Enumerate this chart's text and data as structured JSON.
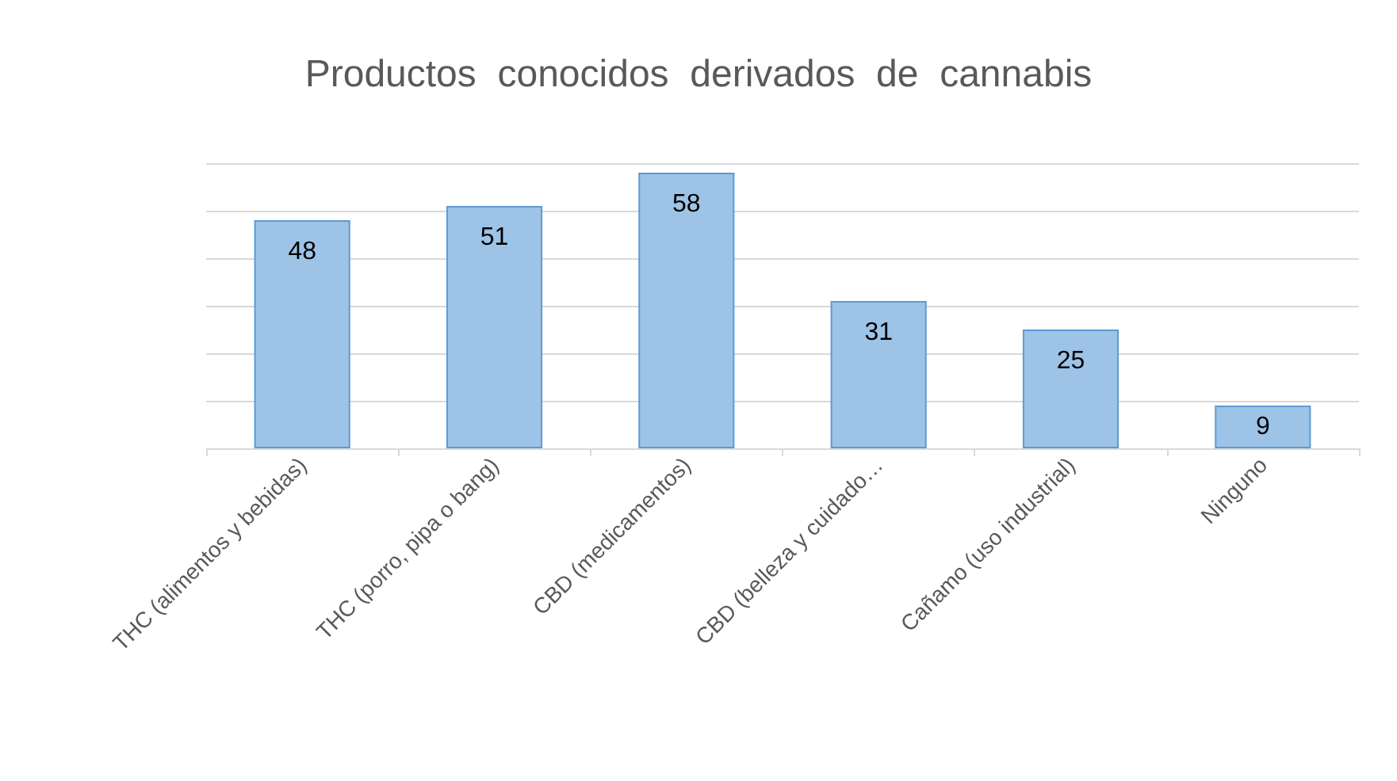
{
  "chart_data": {
    "type": "bar",
    "title": "Productos  conocidos  derivados  de  cannabis",
    "categories": [
      "THC (alimentos y bebidas)",
      "THC (porro, pipa o bang)",
      "CBD (medicamentos)",
      "CBD (belleza y cuidado…",
      "Cañamo (uso industrial)",
      "Ninguno"
    ],
    "values": [
      48,
      51,
      58,
      31,
      25,
      9
    ],
    "color": "#9dc3e6",
    "data_labels": true,
    "grid": "y",
    "tick_labels": "x"
  }
}
